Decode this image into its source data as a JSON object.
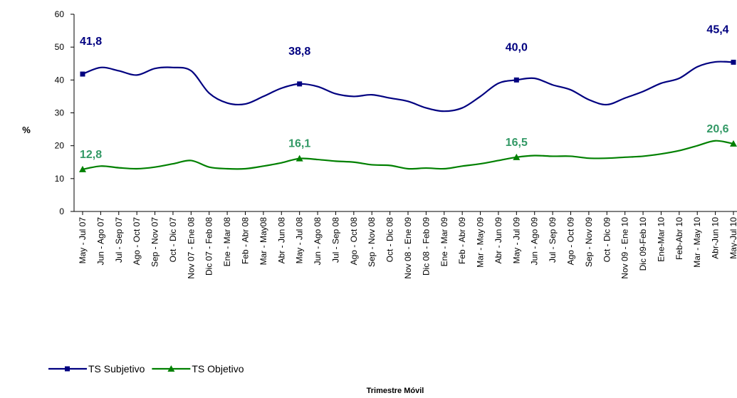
{
  "chart_data": {
    "type": "line",
    "categories": [
      "May - Jul 07",
      "Jun - Ago 07",
      "Jul - Sep 07",
      "Ago - Oct 07",
      "Sep - Nov 07",
      "Oct - Dic 07",
      "Nov 07 - Ene 08",
      "Dic 07 - Feb 08",
      "Ene - Mar 08",
      "Feb - Abr 08",
      "Mar - May08",
      "Abr - Jun 08",
      "May - Jul 08",
      "Jun - Ago 08",
      "Jul - Sep 08",
      "Ago - Oct 08",
      "Sep - Nov 08",
      "Oct - Dic 08",
      "Nov 08 - Ene 09",
      "Dic 08 - Feb 09",
      "Ene - Mar 09",
      "Feb - Abr 09",
      "Mar - May 09",
      "Abr - Jun 09",
      "May - Jul 09",
      "Jun - Ago 09",
      "Jul - Sep 09",
      "Ago - Oct 09",
      "Sep - Nov 09",
      "Oct - Dic 09",
      "Nov 09 - Ene 10",
      "Dic 09-Feb 10",
      "Ene-Mar 10",
      "Feb-Abr 10",
      "Mar - May 10",
      "Abr-Jun 10",
      "May-Jul 10"
    ],
    "series": [
      {
        "name": "TS Subjetivo",
        "color": "#000080",
        "marker": "square",
        "values": [
          41.8,
          43.8,
          42.8,
          41.5,
          43.5,
          43.8,
          42.8,
          36,
          33,
          32.7,
          35,
          37.5,
          38.8,
          38,
          35.8,
          35,
          35.5,
          34.5,
          33.5,
          31.5,
          30.5,
          31.5,
          35,
          39,
          40.0,
          40.5,
          38.5,
          37,
          34,
          32.5,
          34.5,
          36.5,
          39,
          40.5,
          44,
          45.5,
          45.4
        ],
        "value_labels": [
          "41,8",
          null,
          null,
          null,
          null,
          null,
          null,
          null,
          null,
          null,
          null,
          null,
          "38,8",
          null,
          null,
          null,
          null,
          null,
          null,
          null,
          null,
          null,
          null,
          null,
          "40,0",
          null,
          null,
          null,
          null,
          null,
          null,
          null,
          null,
          null,
          null,
          null,
          "45,4"
        ]
      },
      {
        "name": "TS Objetivo",
        "color": "#008000",
        "label_color": "#339966",
        "marker": "triangle",
        "values": [
          12.8,
          13.8,
          13.3,
          13,
          13.5,
          14.5,
          15.5,
          13.5,
          13,
          13,
          13.8,
          14.8,
          16.1,
          15.8,
          15.3,
          15,
          14.2,
          14,
          13,
          13.2,
          13,
          13.8,
          14.5,
          15.5,
          16.5,
          17,
          16.8,
          16.8,
          16.2,
          16.2,
          16.5,
          16.8,
          17.5,
          18.5,
          20,
          21.5,
          20.6
        ],
        "value_labels": [
          "12,8",
          null,
          null,
          null,
          null,
          null,
          null,
          null,
          null,
          null,
          null,
          null,
          "16,1",
          null,
          null,
          null,
          null,
          null,
          null,
          null,
          null,
          null,
          null,
          null,
          "16,5",
          null,
          null,
          null,
          null,
          null,
          null,
          null,
          null,
          null,
          null,
          null,
          "20,6"
        ]
      }
    ],
    "ylabel": "%",
    "xlabel": "Trimestre Móvil",
    "ylim": [
      0,
      60
    ],
    "yticks": [
      0,
      10,
      20,
      30,
      40,
      50,
      60
    ],
    "grid": false,
    "legend": "bottom-left"
  }
}
